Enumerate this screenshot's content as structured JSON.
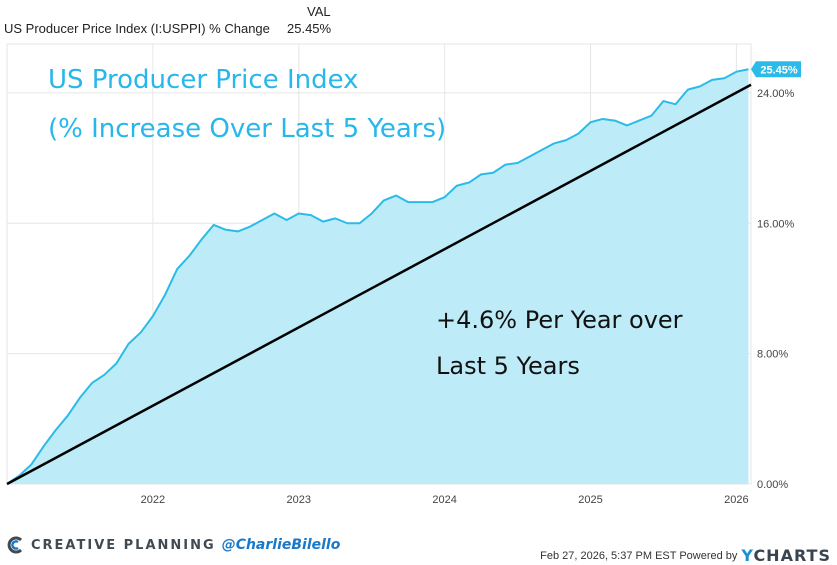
{
  "legend": {
    "column_header": "VAL",
    "series_name": "US Producer Price Index (I:USPPI) % Change",
    "value": "25.45%"
  },
  "chart_data": {
    "type": "area",
    "title": "US Producer Price Index",
    "subtitle": "(% Increase Over Last 5 Years)",
    "annotation": [
      "+4.6% Per Year over",
      "Last 5 Years"
    ],
    "last_value_label": "25.45%",
    "x_tick_labels": [
      "2022",
      "2023",
      "2024",
      "2025",
      "2026"
    ],
    "x_ticks": [
      2022.0,
      2023.0,
      2024.0,
      2025.0,
      2026.0
    ],
    "y_tick_labels": [
      "0.00%",
      "8.00%",
      "16.00%",
      "24.00%"
    ],
    "y_ticks": [
      0,
      8,
      16,
      24
    ],
    "xlim": [
      2021.0,
      2026.1
    ],
    "ylim": [
      0,
      27
    ],
    "grid": true,
    "series": [
      {
        "name": "US Producer Price Index (I:USPPI) % Change",
        "x": [
          2021.0,
          2021.083,
          2021.167,
          2021.25,
          2021.333,
          2021.417,
          2021.5,
          2021.583,
          2021.667,
          2021.75,
          2021.833,
          2021.917,
          2022.0,
          2022.083,
          2022.167,
          2022.25,
          2022.333,
          2022.417,
          2022.5,
          2022.583,
          2022.667,
          2022.75,
          2022.833,
          2022.917,
          2023.0,
          2023.083,
          2023.167,
          2023.25,
          2023.333,
          2023.417,
          2023.5,
          2023.583,
          2023.667,
          2023.75,
          2023.833,
          2023.917,
          2024.0,
          2024.083,
          2024.167,
          2024.25,
          2024.333,
          2024.417,
          2024.5,
          2024.583,
          2024.667,
          2024.75,
          2024.833,
          2024.917,
          2025.0,
          2025.083,
          2025.167,
          2025.25,
          2025.333,
          2025.417,
          2025.5,
          2025.583,
          2025.667,
          2025.75,
          2025.833,
          2025.917,
          2026.0,
          2026.083
        ],
        "values": [
          0.0,
          0.5,
          1.2,
          2.3,
          3.3,
          4.2,
          5.3,
          6.2,
          6.7,
          7.4,
          8.6,
          9.3,
          10.3,
          11.6,
          13.2,
          14.0,
          15.0,
          15.9,
          15.6,
          15.5,
          15.8,
          16.2,
          16.6,
          16.2,
          16.6,
          16.5,
          16.1,
          16.3,
          16.0,
          16.0,
          16.6,
          17.4,
          17.7,
          17.3,
          17.3,
          17.3,
          17.6,
          18.3,
          18.5,
          19.0,
          19.1,
          19.6,
          19.7,
          20.1,
          20.5,
          20.9,
          21.1,
          21.5,
          22.2,
          22.4,
          22.3,
          22.0,
          22.3,
          22.6,
          23.5,
          23.3,
          24.2,
          24.4,
          24.8,
          24.9,
          25.3,
          25.45
        ]
      },
      {
        "name": "",
        "type": "line",
        "x": [
          2021.0,
          2026.1
        ],
        "values": [
          0.0,
          24.5
        ]
      }
    ]
  },
  "colors": {
    "area_fill": "#bdecf8",
    "series_line": "#2cbbe8",
    "trend_line": "#000000",
    "title_text": "#27b7ea",
    "grid": "#e6e6e6"
  },
  "footer": {
    "brand": "CREATIVE PLANNING",
    "handle": "@CharlieBilello",
    "timestamp": "Feb 27, 2026, 5:37 PM EST Powered by",
    "ycharts_y": "Y",
    "ycharts_rest": "CHARTS"
  }
}
